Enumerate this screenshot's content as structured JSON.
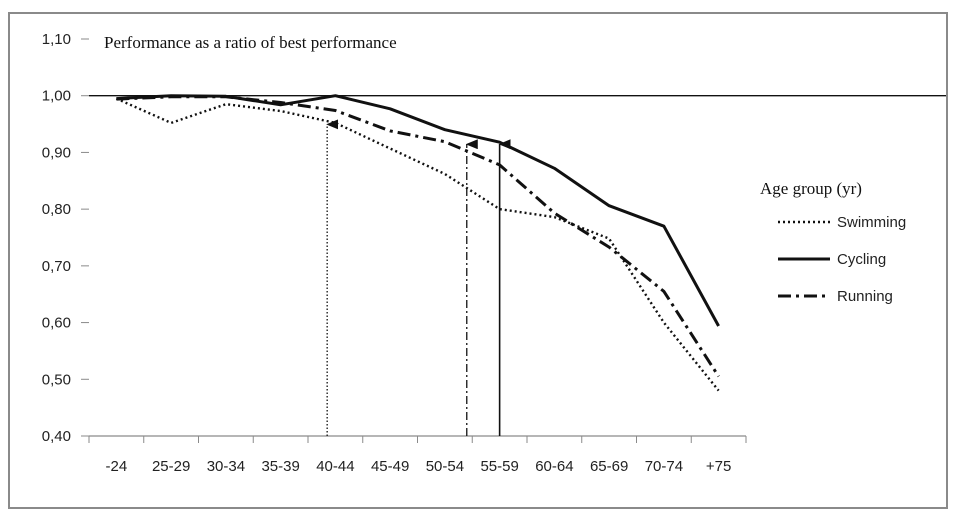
{
  "chart_data": {
    "type": "line",
    "title": "Performance as a ratio of best performance",
    "xlabel": "",
    "ylabel": "",
    "categories": [
      "-24",
      "25-29",
      "30-34",
      "35-39",
      "40-44",
      "45-49",
      "50-54",
      "55-59",
      "60-64",
      "65-69",
      "70-74",
      "+75"
    ],
    "ylim": [
      0.4,
      1.1
    ],
    "yticks": [
      "0,40",
      "0,50",
      "0,60",
      "0,70",
      "0,80",
      "0,90",
      "1,00",
      "1,10"
    ],
    "reference_line": 1.0,
    "legend_title": "Age group (yr)",
    "legend_position": "right",
    "grid": false,
    "series": [
      {
        "name": "Swimming",
        "style": "dotted",
        "color": "#111111",
        "values": [
          0.995,
          0.952,
          0.985,
          0.973,
          0.952,
          0.907,
          0.862,
          0.8,
          0.786,
          0.748,
          0.6,
          0.48
        ]
      },
      {
        "name": "Cycling",
        "style": "solid",
        "color": "#111111",
        "values": [
          0.995,
          1.0,
          0.999,
          0.984,
          1.0,
          0.977,
          0.94,
          0.918,
          0.872,
          0.806,
          0.77,
          0.594
        ]
      },
      {
        "name": "Running",
        "style": "dashdot",
        "color": "#111111",
        "values": [
          0.994,
          0.998,
          0.998,
          0.988,
          0.974,
          0.938,
          0.919,
          0.878,
          0.793,
          0.733,
          0.655,
          0.505
        ]
      }
    ],
    "annotations": [
      {
        "type": "arrow",
        "style": "dotted",
        "x_category": "40-44",
        "x_offset": -0.15,
        "y_from": 0.4,
        "y_to": 0.953
      },
      {
        "type": "arrow",
        "style": "dashdot",
        "x_category": "50-54",
        "x_offset": 0.4,
        "y_from": 0.4,
        "y_to": 0.918
      },
      {
        "type": "arrow",
        "style": "solid",
        "x_category": "55-59",
        "x_offset": 0.0,
        "y_from": 0.4,
        "y_to": 0.918
      }
    ]
  }
}
